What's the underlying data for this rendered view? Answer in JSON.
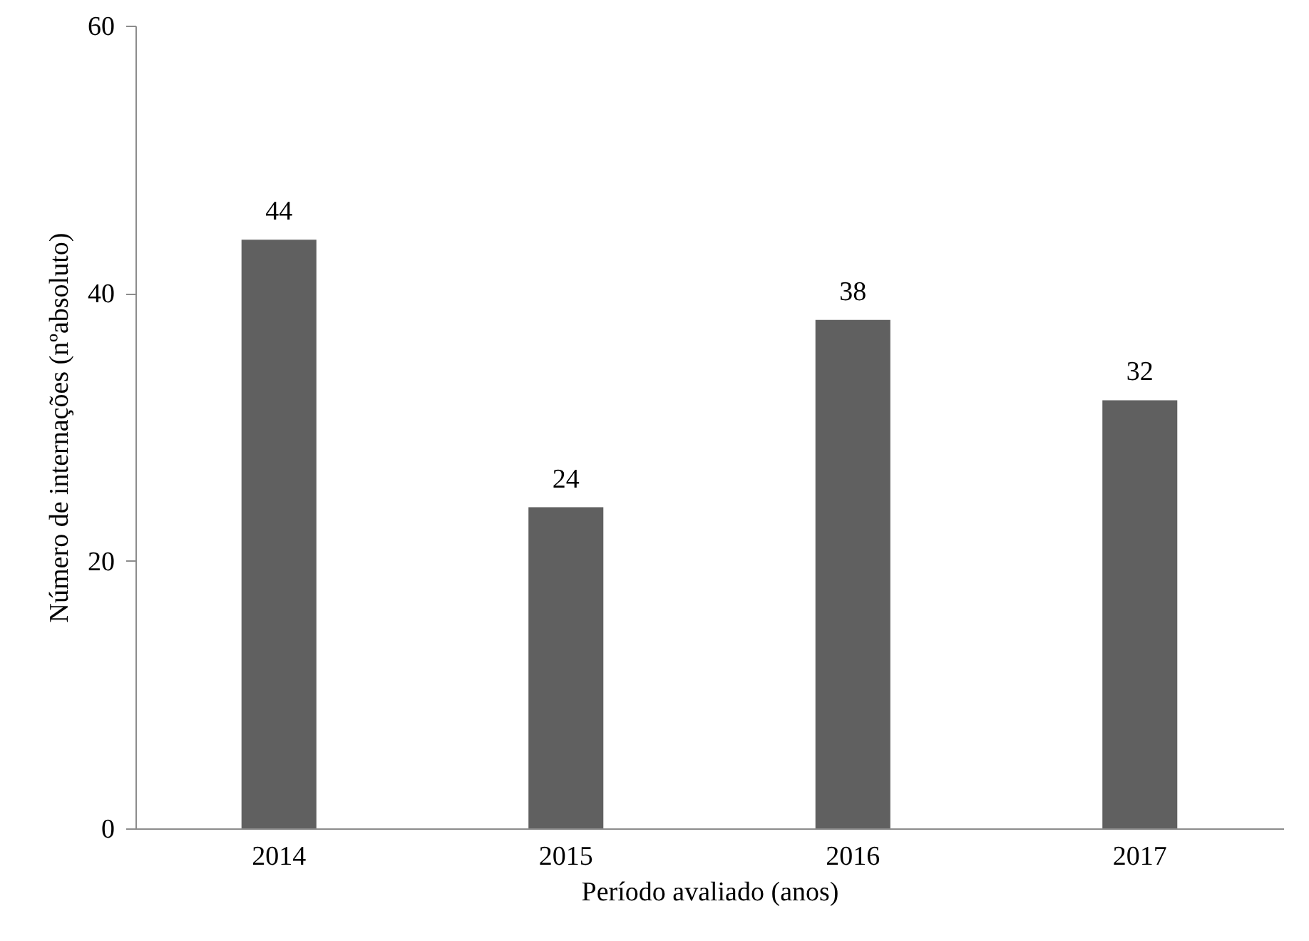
{
  "chart_data": {
    "type": "bar",
    "xlabel": "Período avaliado (anos)",
    "ylabel": "Número de internações (nºabsoluto)",
    "categories": [
      "2014",
      "2015",
      "2016",
      "2017"
    ],
    "values": [
      44,
      24,
      38,
      32
    ],
    "color": "#606060",
    "ylim": [
      0,
      60
    ],
    "yticks": [
      0,
      20,
      40,
      60
    ],
    "grid": false,
    "data_labels": true
  }
}
